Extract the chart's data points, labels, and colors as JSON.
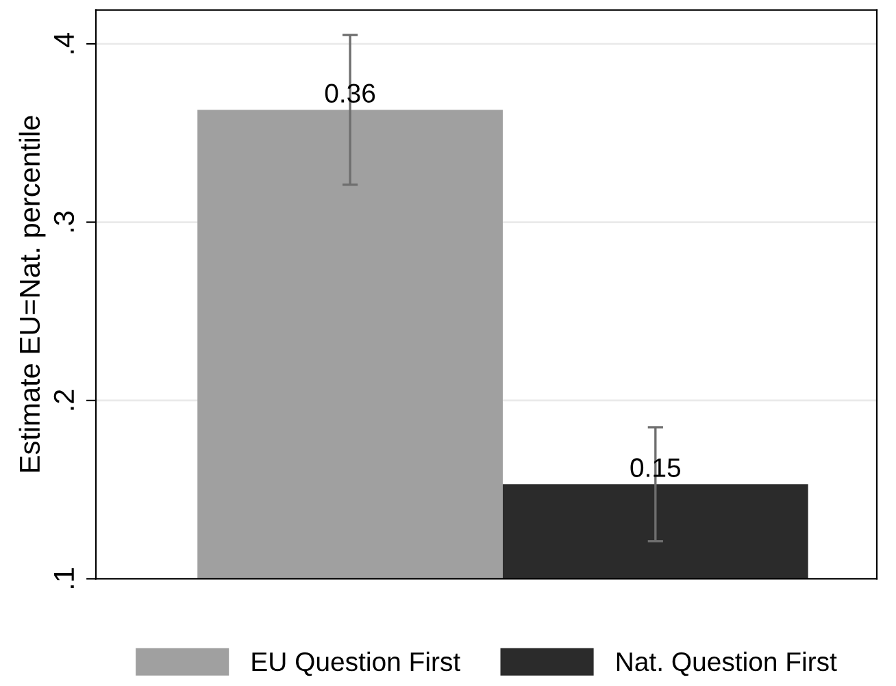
{
  "chart_data": {
    "type": "bar",
    "ylabel": "Estimate EU=Nat. percentile",
    "categories": [
      null
    ],
    "series": [
      {
        "name": "EU Question First",
        "color": "#a0a0a0",
        "values": [
          0.363
        ],
        "errors": [
          [
            0.321,
            0.405
          ]
        ],
        "value_labels": [
          "0.36"
        ]
      },
      {
        "name": "Nat. Question First",
        "color": "#2b2b2b",
        "values": [
          0.153
        ],
        "errors": [
          [
            0.121,
            0.185
          ]
        ],
        "value_labels": [
          "0.15"
        ]
      }
    ],
    "ylim": [
      0.1,
      0.419
    ],
    "yticks": [
      {
        "value": 0.1,
        "label": ".1"
      },
      {
        "value": 0.2,
        "label": ".2"
      },
      {
        "value": 0.3,
        "label": ".3"
      },
      {
        "value": 0.4,
        "label": ".4"
      }
    ],
    "grid": "y",
    "legend": "bottom"
  }
}
